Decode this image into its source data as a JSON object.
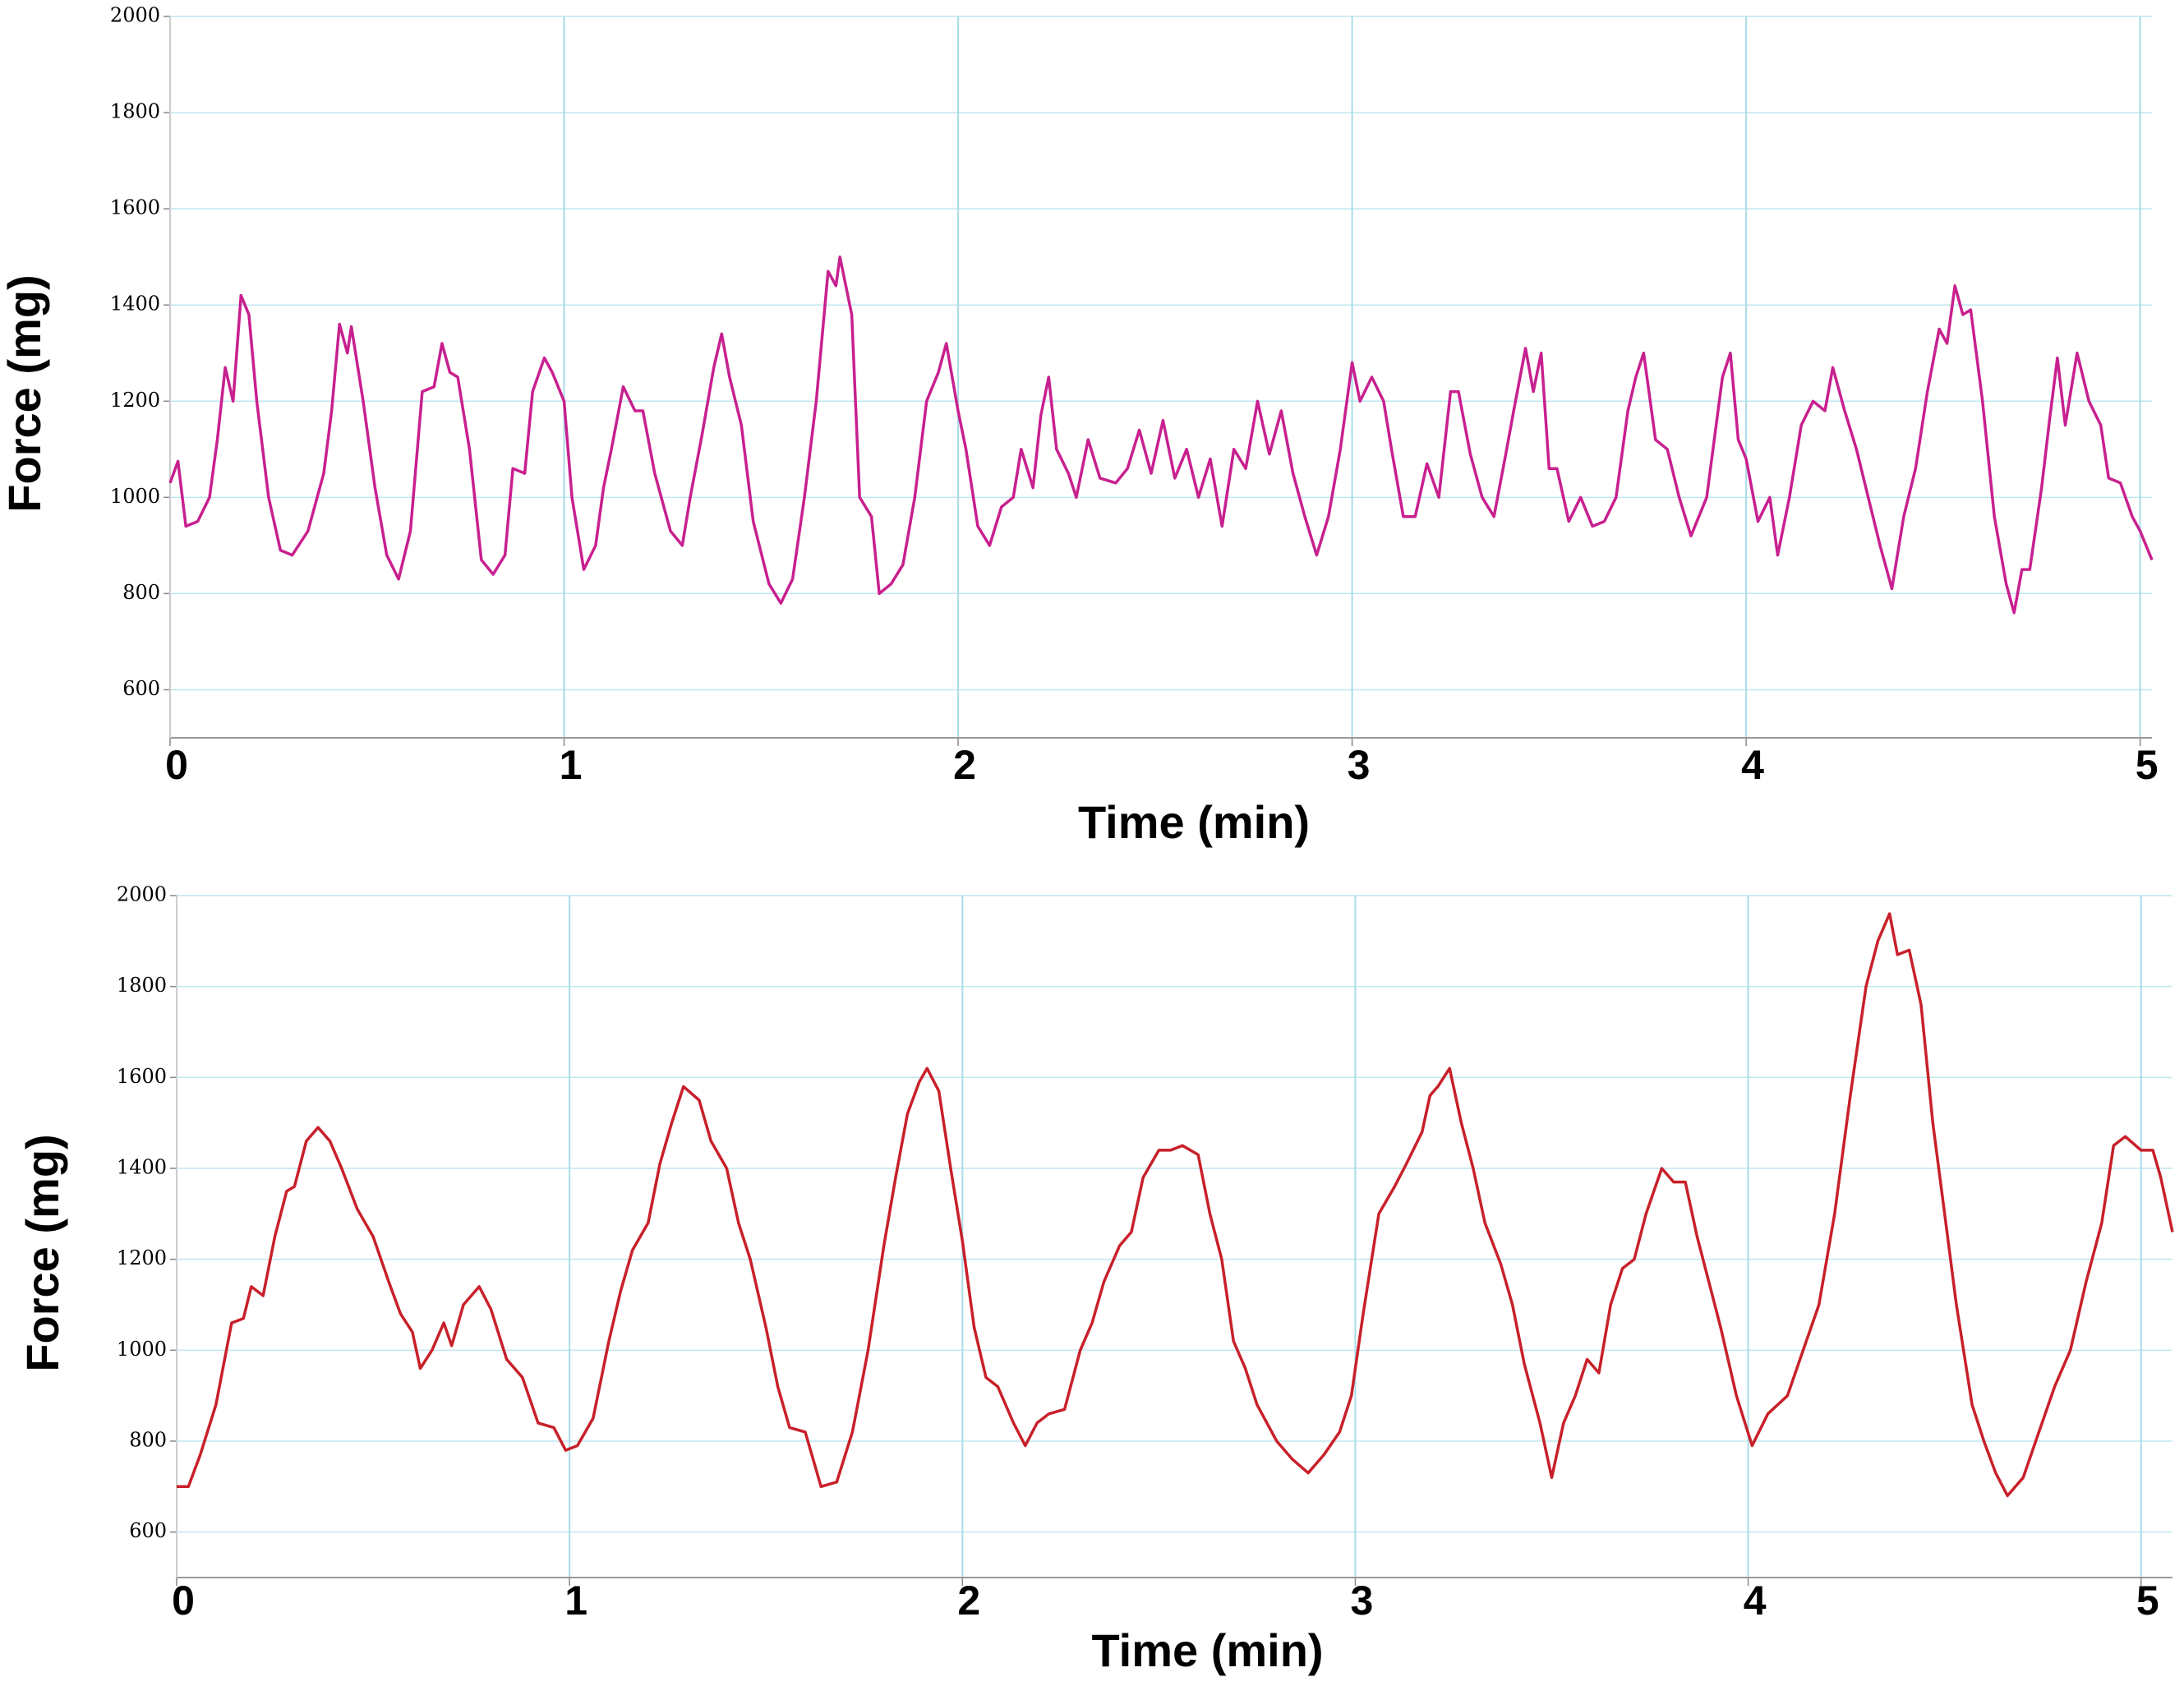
{
  "chart_data": [
    {
      "type": "line",
      "xlabel": "Time (min)",
      "ylabel": "Force (mg)",
      "color": "#c8208f",
      "xlim": [
        0,
        5.03
      ],
      "ylim": [
        500,
        2000
      ],
      "xticks": [
        0,
        1,
        2,
        3,
        4,
        5
      ],
      "yticks": [
        600,
        800,
        1000,
        1200,
        1400,
        1600,
        1800,
        2000
      ],
      "grid": true,
      "x": [
        0,
        0.02,
        0.04,
        0.07,
        0.1,
        0.12,
        0.14,
        0.16,
        0.18,
        0.2,
        0.22,
        0.25,
        0.28,
        0.31,
        0.35,
        0.39,
        0.41,
        0.43,
        0.45,
        0.46,
        0.49,
        0.52,
        0.55,
        0.58,
        0.61,
        0.64,
        0.67,
        0.69,
        0.71,
        0.73,
        0.76,
        0.79,
        0.82,
        0.85,
        0.87,
        0.9,
        0.92,
        0.95,
        0.97,
        1.0,
        1.02,
        1.05,
        1.08,
        1.1,
        1.12,
        1.15,
        1.18,
        1.2,
        1.23,
        1.27,
        1.3,
        1.32,
        1.35,
        1.38,
        1.4,
        1.42,
        1.45,
        1.48,
        1.52,
        1.55,
        1.58,
        1.61,
        1.64,
        1.67,
        1.69,
        1.7,
        1.73,
        1.75,
        1.78,
        1.8,
        1.83,
        1.86,
        1.89,
        1.92,
        1.95,
        1.97,
        2.0,
        2.02,
        2.05,
        2.08,
        2.11,
        2.14,
        2.16,
        2.19,
        2.21,
        2.23,
        2.25,
        2.28,
        2.3,
        2.33,
        2.36,
        2.4,
        2.43,
        2.46,
        2.49,
        2.52,
        2.55,
        2.58,
        2.61,
        2.64,
        2.67,
        2.7,
        2.73,
        2.76,
        2.79,
        2.82,
        2.85,
        2.88,
        2.91,
        2.94,
        2.97,
        3.0,
        3.02,
        3.05,
        3.08,
        3.1,
        3.13,
        3.16,
        3.19,
        3.22,
        3.25,
        3.27,
        3.3,
        3.33,
        3.36,
        3.39,
        3.41,
        3.44,
        3.46,
        3.48,
        3.5,
        3.52,
        3.55,
        3.58,
        3.61,
        3.64,
        3.67,
        3.7,
        3.72,
        3.74,
        3.77,
        3.8,
        3.83,
        3.86,
        3.9,
        3.94,
        3.96,
        3.98,
        4.0,
        4.03,
        4.06,
        4.08,
        4.11,
        4.14,
        4.17,
        4.2,
        4.22,
        4.25,
        4.28,
        4.31,
        4.34,
        4.37,
        4.4,
        4.43,
        4.46,
        4.49,
        4.51,
        4.53,
        4.55,
        4.57,
        4.6,
        4.63,
        4.66,
        4.68,
        4.7,
        4.72,
        4.75,
        4.77,
        4.79,
        4.81,
        4.84,
        4.87,
        4.9,
        4.92,
        4.95,
        4.98,
        5.0,
        5.03
      ],
      "values": [
        1030,
        1075,
        940,
        950,
        1000,
        1120,
        1270,
        1200,
        1420,
        1380,
        1200,
        1000,
        890,
        880,
        930,
        1050,
        1180,
        1360,
        1300,
        1355,
        1200,
        1020,
        880,
        830,
        930,
        1220,
        1230,
        1320,
        1260,
        1250,
        1100,
        870,
        840,
        880,
        1060,
        1050,
        1220,
        1290,
        1260,
        1200,
        1000,
        850,
        900,
        1020,
        1100,
        1230,
        1180,
        1180,
        1050,
        930,
        900,
        1000,
        1130,
        1270,
        1340,
        1250,
        1150,
        950,
        820,
        780,
        830,
        1000,
        1200,
        1470,
        1440,
        1500,
        1380,
        1000,
        960,
        800,
        820,
        860,
        1000,
        1200,
        1260,
        1320,
        1180,
        1100,
        940,
        900,
        980,
        1000,
        1100,
        1020,
        1170,
        1250,
        1100,
        1050,
        1000,
        1120,
        1040,
        1030,
        1060,
        1140,
        1050,
        1160,
        1040,
        1100,
        1000,
        1080,
        940,
        1100,
        1060,
        1200,
        1090,
        1180,
        1050,
        960,
        880,
        960,
        1100,
        1280,
        1200,
        1250,
        1200,
        1100,
        960,
        960,
        1070,
        1000,
        1220,
        1220,
        1090,
        1000,
        960,
        1090,
        1180,
        1310,
        1220,
        1300,
        1060,
        1060,
        950,
        1000,
        940,
        950,
        1000,
        1180,
        1250,
        1300,
        1120,
        1100,
        1000,
        920,
        1000,
        1250,
        1300,
        1120,
        1080,
        950,
        1000,
        880,
        1000,
        1150,
        1200,
        1180,
        1270,
        1180,
        1100,
        1000,
        900,
        810,
        960,
        1060,
        1220,
        1350,
        1320,
        1440,
        1380,
        1390,
        1200,
        960,
        820,
        760,
        850,
        850,
        1020,
        1160,
        1290,
        1150,
        1300,
        1200,
        1150,
        1040,
        1030,
        960,
        930,
        870
      ]
    },
    {
      "type": "line",
      "xlabel": "Time (min)",
      "ylabel": "Force (mg)",
      "color": "#c8202a",
      "xlim": [
        0,
        5.08
      ],
      "ylim": [
        500,
        2000
      ],
      "xticks": [
        0,
        1,
        2,
        3,
        4,
        5
      ],
      "yticks": [
        600,
        800,
        1000,
        1200,
        1400,
        1600,
        1800,
        2000
      ],
      "grid": true,
      "x": [
        0,
        0.03,
        0.06,
        0.1,
        0.14,
        0.17,
        0.19,
        0.22,
        0.25,
        0.28,
        0.3,
        0.33,
        0.36,
        0.39,
        0.42,
        0.46,
        0.5,
        0.54,
        0.57,
        0.6,
        0.62,
        0.65,
        0.68,
        0.7,
        0.73,
        0.77,
        0.8,
        0.84,
        0.88,
        0.92,
        0.96,
        0.99,
        1.02,
        1.06,
        1.1,
        1.13,
        1.16,
        1.2,
        1.23,
        1.26,
        1.29,
        1.33,
        1.36,
        1.4,
        1.43,
        1.46,
        1.5,
        1.53,
        1.56,
        1.6,
        1.64,
        1.68,
        1.72,
        1.76,
        1.8,
        1.83,
        1.86,
        1.89,
        1.91,
        1.94,
        1.97,
        2.0,
        2.03,
        2.06,
        2.09,
        2.13,
        2.16,
        2.19,
        2.22,
        2.26,
        2.3,
        2.33,
        2.36,
        2.4,
        2.43,
        2.46,
        2.5,
        2.53,
        2.56,
        2.6,
        2.63,
        2.66,
        2.69,
        2.72,
        2.75,
        2.8,
        2.84,
        2.88,
        2.92,
        2.96,
        2.99,
        3.02,
        3.06,
        3.1,
        3.13,
        3.17,
        3.19,
        3.21,
        3.24,
        3.27,
        3.3,
        3.33,
        3.37,
        3.4,
        3.43,
        3.47,
        3.5,
        3.53,
        3.56,
        3.59,
        3.62,
        3.65,
        3.68,
        3.71,
        3.74,
        3.78,
        3.81,
        3.84,
        3.87,
        3.9,
        3.93,
        3.97,
        4.01,
        4.05,
        4.1,
        4.14,
        4.18,
        4.22,
        4.26,
        4.3,
        4.33,
        4.36,
        4.38,
        4.41,
        4.44,
        4.47,
        4.5,
        4.53,
        4.57,
        4.6,
        4.63,
        4.66,
        4.7,
        4.74,
        4.78,
        4.82,
        4.86,
        4.9,
        4.93,
        4.96,
        5.0,
        5.03,
        5.05,
        5.08
      ],
      "values": [
        700,
        700,
        770,
        880,
        1060,
        1070,
        1140,
        1120,
        1250,
        1350,
        1360,
        1460,
        1490,
        1460,
        1400,
        1310,
        1250,
        1150,
        1080,
        1040,
        960,
        1000,
        1060,
        1010,
        1100,
        1140,
        1090,
        980,
        940,
        840,
        830,
        780,
        790,
        850,
        1020,
        1130,
        1220,
        1280,
        1410,
        1500,
        1580,
        1550,
        1460,
        1400,
        1280,
        1200,
        1050,
        920,
        830,
        820,
        700,
        710,
        820,
        1000,
        1230,
        1380,
        1520,
        1590,
        1620,
        1570,
        1400,
        1240,
        1050,
        940,
        920,
        840,
        790,
        840,
        860,
        870,
        1000,
        1060,
        1150,
        1230,
        1260,
        1380,
        1440,
        1440,
        1450,
        1430,
        1300,
        1200,
        1020,
        960,
        880,
        800,
        760,
        730,
        770,
        820,
        900,
        1080,
        1300,
        1360,
        1410,
        1480,
        1560,
        1580,
        1620,
        1500,
        1400,
        1280,
        1190,
        1100,
        970,
        840,
        720,
        840,
        900,
        980,
        950,
        1100,
        1180,
        1200,
        1300,
        1400,
        1370,
        1370,
        1250,
        1150,
        1050,
        900,
        790,
        860,
        900,
        1000,
        1100,
        1300,
        1560,
        1800,
        1900,
        1960,
        1870,
        1880,
        1760,
        1500,
        1300,
        1100,
        880,
        800,
        730,
        680,
        720,
        820,
        920,
        1000,
        1150,
        1280,
        1450,
        1470,
        1440,
        1440,
        1380,
        1260
      ]
    }
  ]
}
